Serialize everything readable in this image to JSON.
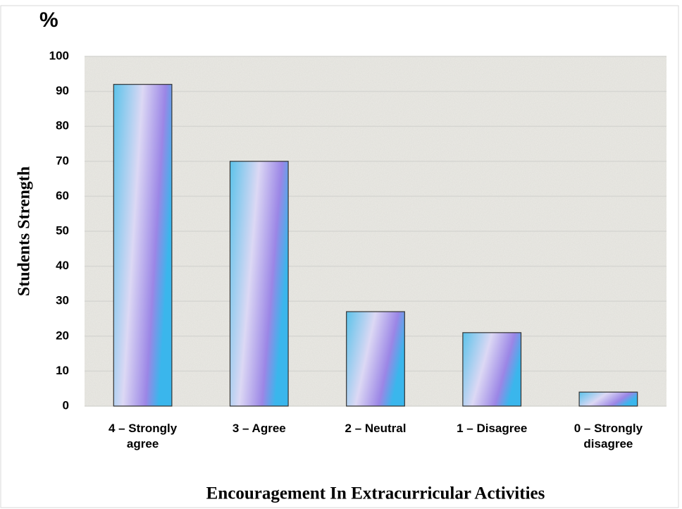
{
  "chart_data": {
    "type": "bar",
    "title": "%",
    "ylabel": "Students Strength",
    "xlabel": "Encouragement In Extracurricular Activities",
    "categories": [
      "4 – Strongly agree",
      "3 – Agree",
      "2 – Neutral",
      "1 – Disagree",
      "0 – Strongly disagree"
    ],
    "values": [
      92,
      70,
      27,
      21,
      4
    ],
    "color": "#5cc3ea",
    "ylim": [
      0,
      100
    ],
    "yticks": [
      0,
      10,
      20,
      30,
      40,
      50,
      60,
      70,
      80,
      90,
      100
    ],
    "grid": true
  }
}
